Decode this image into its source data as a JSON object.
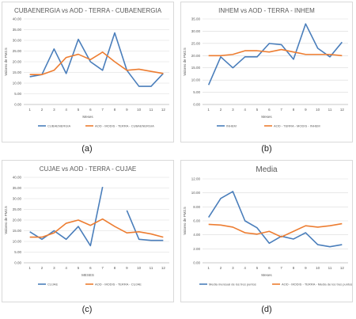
{
  "chart_data": [
    {
      "type": "line",
      "title": "CUBAENERGIA vs AOD -  TERRA - CUBAENERGIA",
      "xlabel": "Meses",
      "ylabel": "Valores de PM2.5",
      "categories": [
        "1",
        "2",
        "3",
        "4",
        "5",
        "6",
        "7",
        "8",
        "9",
        "10",
        "11",
        "12"
      ],
      "ylim": [
        0,
        40
      ],
      "ytick_step": 5,
      "ytick_labels": [
        "0.00",
        "5.00",
        "10.00",
        "15.00",
        "20.00",
        "25.00",
        "30.00",
        "35.00",
        "40.00"
      ],
      "series": [
        {
          "name": "CUBAENERGIA",
          "color": "#4A7EBB",
          "values": [
            13,
            14,
            26,
            14.5,
            30.5,
            20,
            16,
            33.5,
            16,
            8.5,
            8.5,
            14.5
          ]
        },
        {
          "name": "AOD - MODIS - TERRA - CUBAENERGIA",
          "color": "#ED7D31",
          "values": [
            14,
            14,
            16,
            22,
            23.5,
            21,
            24.5,
            20,
            16,
            16.5,
            15.5,
            14.5
          ]
        }
      ],
      "caption": "(a)"
    },
    {
      "type": "line",
      "title": "INHEM vs AOD -  TERRA - INHEM",
      "xlabel": "Meses",
      "ylabel": "Valores de PM2.5",
      "categories": [
        "1",
        "2",
        "3",
        "4",
        "5",
        "6",
        "7",
        "8",
        "9",
        "10",
        "11",
        "12"
      ],
      "ylim": [
        0,
        35
      ],
      "ytick_step": 5,
      "ytick_labels": [
        "0.00",
        "5.00",
        "10.00",
        "15.00",
        "20.00",
        "25.00",
        "30.00",
        "35.00"
      ],
      "series": [
        {
          "name": "INHEM",
          "color": "#4A7EBB",
          "values": [
            8,
            19.5,
            15,
            19.5,
            19.5,
            25,
            24.5,
            18.5,
            33,
            23,
            19.5,
            25.5
          ]
        },
        {
          "name": "AOD - TERRA - MODIS - INHEM",
          "color": "#ED7D31",
          "values": [
            20,
            20,
            20.5,
            22,
            22,
            21.5,
            22.5,
            21.5,
            20.5,
            20.5,
            20.5,
            20
          ]
        }
      ],
      "caption": "(b)"
    },
    {
      "type": "line",
      "title": "CUJAE  vs AOD - TERRA - CUJAE",
      "xlabel": "MESES",
      "ylabel": "Valores de PM2.5",
      "categories": [
        "1",
        "2",
        "3",
        "4",
        "5",
        "6",
        "7",
        "8",
        "9",
        "10",
        "11",
        "12"
      ],
      "ylim": [
        0,
        40
      ],
      "ytick_step": 5,
      "ytick_labels": [
        "0.00",
        "5.00",
        "10.00",
        "15.00",
        "20.00",
        "25.00",
        "30.00",
        "35.00",
        "40.00"
      ],
      "series": [
        {
          "name": "CUJAE",
          "color": "#4A7EBB",
          "values": [
            14.5,
            11,
            15,
            11,
            17,
            8,
            35.5,
            null,
            24.5,
            11,
            10.5,
            10.5
          ]
        },
        {
          "name": "AOD - MODIS - TERRA - CUJAE",
          "color": "#ED7D31",
          "values": [
            12,
            12,
            14,
            18.5,
            20,
            17.5,
            20.5,
            17,
            14,
            14.5,
            13.5,
            12
          ]
        }
      ],
      "caption": "(c)"
    },
    {
      "type": "line",
      "title": "Media",
      "xlabel": "Meses",
      "ylabel": "Valores de PM2.5",
      "categories": [
        "1",
        "2",
        "3",
        "4",
        "5",
        "6",
        "7",
        "8",
        "9",
        "10",
        "11",
        "12"
      ],
      "ylim": [
        0,
        12
      ],
      "ytick_step": 2,
      "ytick_labels": [
        "0.00",
        "2.00",
        "4.00",
        "6.00",
        "8.00",
        "10.00",
        "12.00"
      ],
      "series": [
        {
          "name": "Media mensual de los tres puntos",
          "color": "#4A7EBB",
          "values": [
            6.5,
            9.2,
            10.2,
            6,
            5,
            2.8,
            3.8,
            3.4,
            4.3,
            2.6,
            2.3,
            2.6
          ]
        },
        {
          "name": "AOD - MODIS - TERRA - Media de los tres puntos",
          "color": "#ED7D31",
          "values": [
            5.5,
            5.4,
            5.1,
            4.3,
            4.1,
            4.5,
            3.7,
            4.5,
            5.3,
            5.1,
            5.3,
            5.6
          ]
        }
      ],
      "caption": "(d)"
    }
  ]
}
